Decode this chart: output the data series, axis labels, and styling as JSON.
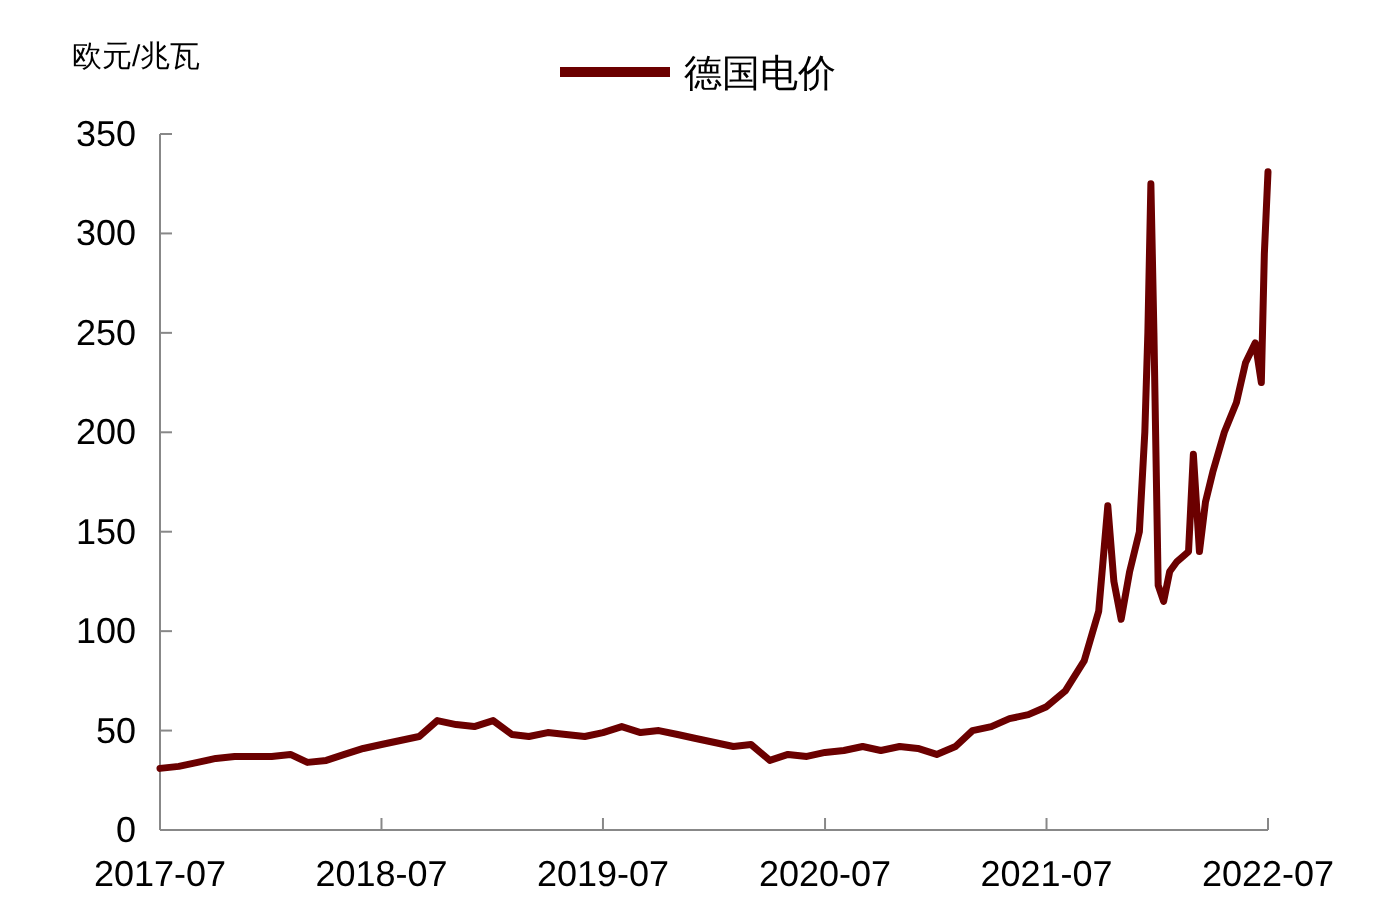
{
  "chart_data": {
    "type": "line",
    "ylabel": "欧元/兆瓦",
    "legend": "top",
    "grid": false,
    "xlim": [
      "2017-07-01",
      "2022-07-01"
    ],
    "xticks": [
      {
        "value": "2017-07-01",
        "label": "2017-07"
      },
      {
        "value": "2018-07-01",
        "label": "2018-07"
      },
      {
        "value": "2019-07-01",
        "label": "2019-07"
      },
      {
        "value": "2020-07-01",
        "label": "2020-07"
      },
      {
        "value": "2021-07-01",
        "label": "2021-07"
      },
      {
        "value": "2022-07-01",
        "label": "2022-07"
      }
    ],
    "ylim": [
      0,
      350
    ],
    "yticks": [
      0,
      50,
      100,
      150,
      200,
      250,
      300,
      350
    ],
    "x": [
      "2017-07-01",
      "2017-08-01",
      "2017-09-01",
      "2017-10-01",
      "2017-11-01",
      "2017-12-01",
      "2018-01-01",
      "2018-02-01",
      "2018-03-01",
      "2018-04-01",
      "2018-05-01",
      "2018-06-01",
      "2018-07-01",
      "2018-08-01",
      "2018-09-01",
      "2018-10-01",
      "2018-11-01",
      "2018-12-01",
      "2019-01-01",
      "2019-02-01",
      "2019-03-01",
      "2019-04-01",
      "2019-05-01",
      "2019-06-01",
      "2019-07-01",
      "2019-08-01",
      "2019-09-01",
      "2019-10-01",
      "2019-11-01",
      "2019-12-01",
      "2020-01-01",
      "2020-02-01",
      "2020-03-01",
      "2020-04-01",
      "2020-05-01",
      "2020-06-01",
      "2020-07-01",
      "2020-08-01",
      "2020-09-01",
      "2020-10-01",
      "2020-11-01",
      "2020-12-01",
      "2021-01-01",
      "2021-02-01",
      "2021-03-01",
      "2021-04-01",
      "2021-05-01",
      "2021-06-01",
      "2021-07-01",
      "2021-08-01",
      "2021-09-01",
      "2021-09-25",
      "2021-10-10",
      "2021-10-20",
      "2021-11-01",
      "2021-11-15",
      "2021-12-01",
      "2021-12-10",
      "2021-12-15",
      "2021-12-20",
      "2021-12-25",
      "2022-01-01",
      "2022-01-10",
      "2022-01-20",
      "2022-02-01",
      "2022-02-20",
      "2022-02-28",
      "2022-03-10",
      "2022-03-20",
      "2022-04-01",
      "2022-04-20",
      "2022-05-10",
      "2022-05-25",
      "2022-06-10",
      "2022-06-20",
      "2022-06-25",
      "2022-07-01"
    ],
    "series": [
      {
        "name": "德国电价",
        "color": "#6b0000",
        "values": [
          31,
          32,
          34,
          36,
          37,
          37,
          37,
          38,
          34,
          35,
          38,
          41,
          43,
          45,
          47,
          55,
          53,
          52,
          55,
          48,
          47,
          49,
          48,
          47,
          49,
          52,
          49,
          50,
          48,
          46,
          44,
          42,
          43,
          35,
          38,
          37,
          39,
          40,
          42,
          40,
          42,
          41,
          38,
          42,
          50,
          52,
          56,
          58,
          62,
          70,
          85,
          110,
          163,
          125,
          106,
          130,
          150,
          200,
          250,
          325,
          250,
          123,
          115,
          130,
          135,
          140,
          189,
          140,
          165,
          180,
          200,
          215,
          235,
          245,
          225,
          290,
          331
        ]
      }
    ]
  }
}
